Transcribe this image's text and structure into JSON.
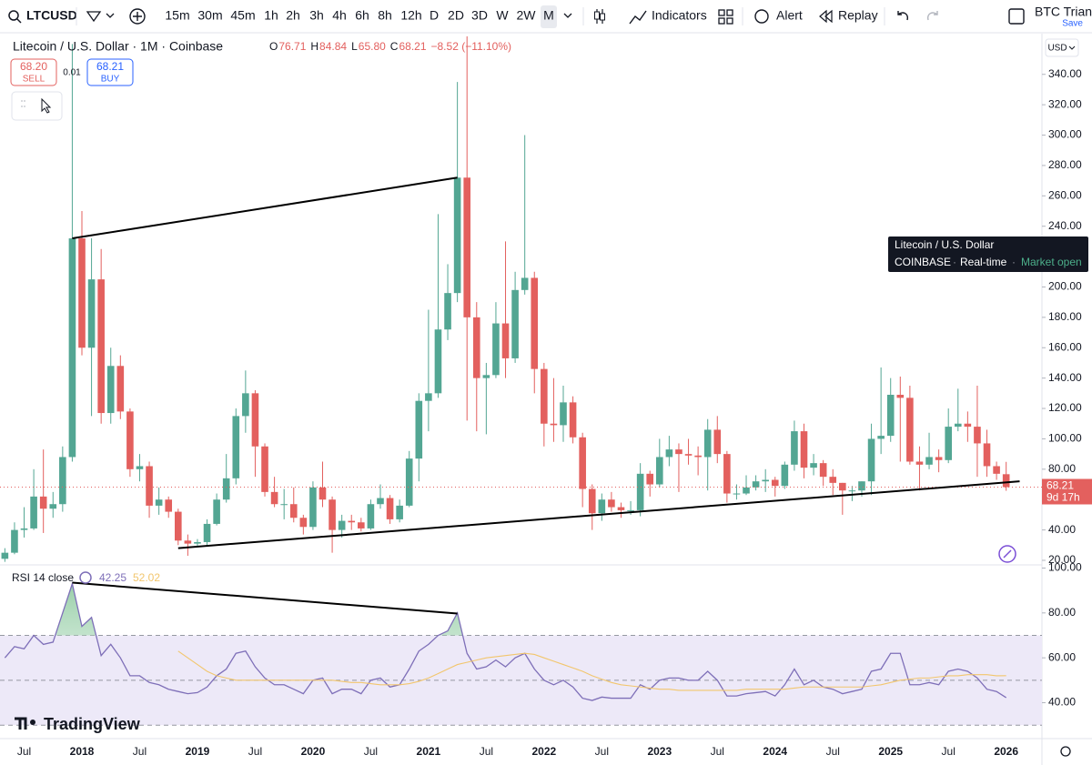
{
  "toolbar": {
    "symbol": "LTCUSD",
    "intervals": [
      "15m",
      "30m",
      "45m",
      "1h",
      "2h",
      "3h",
      "4h",
      "6h",
      "8h",
      "12h",
      "D",
      "2D",
      "3D",
      "W",
      "2W",
      "M"
    ],
    "indicators": "Indicators",
    "alert": "Alert",
    "replay": "Replay",
    "layout_name": "BTC Triang",
    "save": "Save"
  },
  "trade": {
    "sell_price": "68.20",
    "sell": "SELL",
    "spread": "0.01",
    "buy_price": "68.21",
    "buy": "BUY"
  },
  "tooltip": {
    "name": "Litecoin / U.S. Dollar",
    "exchange": "COINBASE",
    "feed": "Real-time",
    "status": "Market open"
  },
  "currency": "USD",
  "brand": "TradingView",
  "chart_data": [
    {
      "type": "candlestick",
      "title": "Litecoin / U.S. Dollar · 1M · Coinbase",
      "legend_prefixes": {
        "open": "O",
        "high": "H",
        "low": "L",
        "close": "C"
      },
      "legend_values": {
        "open": "76.71",
        "high": "84.84",
        "low": "65.80",
        "close": "68.21",
        "change": "−8.52 (−11.10%)"
      },
      "last_price_label": "68.21",
      "countdown": "9d 17h",
      "categories": [
        null,
        null,
        "Jul",
        null,
        null,
        null,
        null,
        null,
        "2018",
        null,
        null,
        null,
        null,
        null,
        "Jul",
        null,
        null,
        null,
        null,
        null,
        "2019",
        null,
        null,
        null,
        null,
        null,
        "Jul",
        null,
        null,
        null,
        null,
        null,
        "2020",
        null,
        null,
        null,
        null,
        null,
        "Jul",
        null,
        null,
        null,
        null,
        null,
        "2021",
        null,
        null,
        null,
        null,
        null,
        "Jul",
        null,
        null,
        null,
        null,
        null,
        "2022",
        null,
        null,
        null,
        null,
        null,
        "Jul",
        null,
        null,
        null,
        null,
        null,
        "2023",
        null,
        null,
        null,
        null,
        null,
        "Jul",
        null,
        null,
        null,
        null,
        null,
        "2024",
        null,
        null,
        null,
        null,
        null,
        "Jul",
        null,
        null,
        null,
        null,
        null,
        "2025",
        null,
        null,
        null,
        null,
        null,
        "Jul",
        null,
        null,
        null,
        null,
        null,
        "2026"
      ],
      "open": [
        21,
        25,
        40,
        41,
        62,
        54,
        57,
        88,
        232,
        160,
        205,
        117,
        148,
        118,
        80,
        82,
        56,
        60,
        52,
        33,
        31,
        32,
        44,
        60,
        74,
        115,
        130,
        95,
        65,
        57,
        57,
        48,
        42,
        68,
        60,
        40,
        46,
        45,
        41,
        57,
        61,
        47,
        56,
        87,
        125,
        130,
        172,
        196,
        272,
        180,
        140,
        142,
        176,
        153,
        198,
        206,
        146,
        110,
        109,
        124,
        101,
        67,
        51,
        60,
        55,
        53,
        53,
        77,
        70,
        88,
        93,
        90,
        89,
        88,
        106,
        90,
        64,
        64,
        68,
        72,
        73,
        69,
        83,
        105,
        81,
        84,
        75,
        71,
        66,
        66,
        72,
        100,
        102,
        129,
        127,
        85,
        83,
        88,
        86,
        108,
        110,
        108,
        97,
        82,
        76.71
      ],
      "high": [
        28,
        45,
        55,
        80,
        93,
        65,
        95,
        360,
        250,
        232,
        225,
        160,
        155,
        120,
        90,
        85,
        68,
        62,
        54,
        37,
        34,
        47,
        64,
        90,
        120,
        145,
        132,
        97,
        75,
        67,
        68,
        50,
        72,
        85,
        62,
        50,
        50,
        48,
        60,
        70,
        63,
        60,
        92,
        130,
        185,
        248,
        215,
        335,
        412,
        190,
        150,
        190,
        230,
        210,
        300,
        210,
        150,
        140,
        135,
        128,
        104,
        70,
        64,
        65,
        58,
        59,
        84,
        79,
        100,
        102,
        97,
        100,
        95,
        113,
        115,
        92,
        70,
        76,
        76,
        80,
        75,
        85,
        112,
        110,
        90,
        86,
        80,
        71,
        69,
        72,
        110,
        147,
        140,
        141,
        135,
        95,
        104,
        93,
        120,
        133,
        118,
        135,
        106,
        85,
        84.84
      ],
      "low": [
        19,
        24,
        35,
        40,
        38,
        48,
        52,
        85,
        155,
        115,
        110,
        110,
        113,
        75,
        72,
        48,
        50,
        48,
        30,
        23,
        29,
        30,
        43,
        58,
        70,
        104,
        75,
        62,
        55,
        47,
        45,
        37,
        40,
        55,
        25,
        35,
        40,
        39,
        40,
        54,
        44,
        45,
        55,
        72,
        105,
        127,
        165,
        190,
        112,
        105,
        103,
        140,
        140,
        150,
        195,
        130,
        95,
        98,
        98,
        97,
        55,
        40,
        46,
        52,
        48,
        50,
        49,
        62,
        68,
        82,
        65,
        83,
        76,
        66,
        84,
        58,
        60,
        63,
        66,
        65,
        62,
        67,
        79,
        74,
        76,
        69,
        63,
        50,
        59,
        62,
        63,
        90,
        98,
        85,
        83,
        66,
        80,
        78,
        84,
        105,
        98,
        75,
        75,
        73,
        65.8
      ],
      "close": [
        25,
        40,
        41,
        62,
        54,
        57,
        88,
        232,
        160,
        205,
        117,
        148,
        118,
        80,
        82,
        56,
        60,
        52,
        33,
        31,
        32,
        44,
        60,
        74,
        115,
        130,
        95,
        65,
        57,
        57,
        48,
        42,
        68,
        60,
        40,
        46,
        45,
        41,
        57,
        61,
        47,
        56,
        87,
        125,
        130,
        172,
        196,
        272,
        180,
        140,
        142,
        176,
        153,
        198,
        206,
        146,
        110,
        109,
        124,
        101,
        67,
        51,
        60,
        55,
        53,
        53,
        77,
        70,
        88,
        93,
        90,
        89,
        88,
        106,
        90,
        64,
        64,
        68,
        72,
        73,
        69,
        83,
        105,
        81,
        84,
        75,
        71,
        66,
        66,
        72,
        100,
        102,
        129,
        127,
        85,
        83,
        88,
        86,
        108,
        110,
        108,
        97,
        82,
        77,
        68.21
      ],
      "up_color": "#53a693",
      "down_color": "#e3605e",
      "ylim": [
        17.6,
        365
      ],
      "yticks": [
        {
          "value": 20,
          "label": "20.00"
        },
        {
          "value": 40,
          "label": "40.00"
        },
        {
          "value": 60,
          "label": "60.00"
        },
        {
          "value": 80,
          "label": "80.00"
        },
        {
          "value": 100,
          "label": "100.00"
        },
        {
          "value": 120,
          "label": "120.00"
        },
        {
          "value": 140,
          "label": "140.00"
        },
        {
          "value": 160,
          "label": "160.00"
        },
        {
          "value": 180,
          "label": "180.00"
        },
        {
          "value": 200,
          "label": "200.00"
        },
        {
          "value": 220,
          "label": "220.00"
        },
        {
          "value": 240,
          "label": "240.00"
        },
        {
          "value": 260,
          "label": "260.00"
        },
        {
          "value": 280,
          "label": "280.00"
        },
        {
          "value": 300,
          "label": "300.00"
        },
        {
          "value": 320,
          "label": "320.00"
        },
        {
          "value": 340,
          "label": "340.00"
        }
      ],
      "trendlines": [
        {
          "from": [
            7,
            232
          ],
          "to": [
            47,
            272
          ]
        },
        {
          "from": [
            18,
            28
          ],
          "to": [
            105.4,
            72
          ]
        }
      ],
      "trendline_color": "#000000"
    },
    {
      "type": "line",
      "title": "RSI 14 close",
      "series": [
        {
          "color": "#7e6fb8",
          "values": [
            60,
            65,
            64,
            70,
            66,
            67,
            80,
            93,
            74,
            78,
            61,
            66,
            60,
            52,
            52,
            49,
            48,
            46,
            45,
            44,
            44.5,
            47,
            52,
            55,
            62,
            63,
            56,
            51,
            48,
            48,
            46,
            44,
            50,
            51,
            44,
            46,
            46,
            44,
            50,
            51,
            47,
            48,
            55,
            63,
            66,
            70,
            72,
            80,
            62,
            55,
            56,
            59,
            56,
            60,
            62,
            55,
            50,
            48,
            50,
            47,
            42,
            41,
            42.5,
            42,
            42,
            42,
            48,
            46,
            50,
            51,
            51,
            50,
            50,
            54,
            50,
            43,
            43,
            44,
            44.5,
            45,
            43,
            48,
            55,
            48,
            50,
            47,
            46,
            44,
            45,
            46,
            54,
            55,
            62,
            62,
            48,
            48,
            49,
            48,
            54,
            55,
            54,
            51,
            46,
            45,
            42.25
          ]
        },
        {
          "color": "#f2c66d",
          "values": [
            null,
            null,
            null,
            null,
            null,
            null,
            null,
            null,
            null,
            null,
            null,
            null,
            null,
            null,
            null,
            null,
            null,
            null,
            63,
            60,
            57,
            54,
            52,
            51,
            50,
            50,
            50,
            50,
            50,
            50,
            50,
            50,
            50,
            50,
            50,
            49.5,
            49,
            49,
            48.5,
            48,
            48,
            48,
            48.5,
            49.5,
            51,
            53,
            55,
            57,
            58,
            59,
            60,
            60.5,
            61,
            61.5,
            62,
            61.5,
            60,
            58.5,
            57,
            55.5,
            54,
            52,
            50.5,
            49,
            48,
            47.5,
            47,
            46.5,
            46,
            46,
            45.5,
            45.5,
            45.5,
            45.5,
            45.5,
            45.5,
            45.5,
            46,
            46,
            46,
            46,
            46,
            46.5,
            47,
            47,
            47,
            47,
            47,
            47,
            47,
            47.5,
            48,
            49,
            50,
            50.5,
            51,
            51,
            51.5,
            52,
            52,
            52.5,
            52.5,
            52.5,
            52,
            52.02
          ]
        }
      ],
      "bands": {
        "upper": 70,
        "middle": 50,
        "lower": 30
      },
      "band_fill": "#ede9f8",
      "overbought_fill": "#b9dcc3",
      "ylim": [
        24,
        101
      ],
      "yticks": [
        {
          "value": 40,
          "label": "40.00"
        },
        {
          "value": 60,
          "label": "60.00"
        },
        {
          "value": 80,
          "label": "80.00"
        },
        {
          "value": 100,
          "label": "100.00"
        }
      ],
      "trendlines": [
        {
          "from": [
            7,
            93.5
          ],
          "to": [
            47,
            79.7
          ]
        }
      ]
    }
  ]
}
